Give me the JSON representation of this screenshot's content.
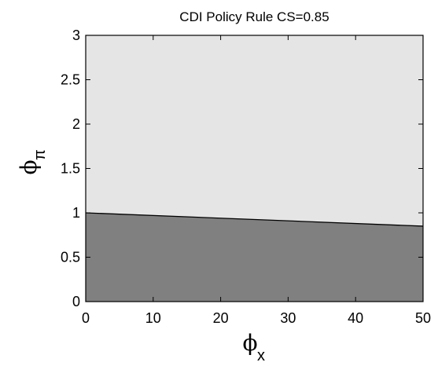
{
  "chart_data": {
    "type": "area",
    "title": "CDI Policy Rule CS=0.85",
    "xlabel": "ϕ",
    "xlabel_sub": "x",
    "ylabel": "ϕ",
    "ylabel_sub": "π",
    "xlim": [
      0,
      50
    ],
    "ylim": [
      0,
      3
    ],
    "xticks": [
      0,
      10,
      20,
      30,
      40,
      50
    ],
    "xtick_labels": [
      "0",
      "10",
      "20",
      "30",
      "40",
      "50"
    ],
    "yticks": [
      0,
      0.5,
      1,
      1.5,
      2,
      2.5,
      3
    ],
    "ytick_labels": [
      "0",
      "0.5",
      "1",
      "1.5",
      "2",
      "2.5",
      "3"
    ],
    "grid": false,
    "boundary_line": {
      "x": [
        0,
        50
      ],
      "y": [
        1.0,
        0.85
      ]
    },
    "regions": [
      {
        "position": "above boundary",
        "color": "#e5e5e5"
      },
      {
        "position": "below boundary",
        "color": "#808080"
      }
    ]
  }
}
